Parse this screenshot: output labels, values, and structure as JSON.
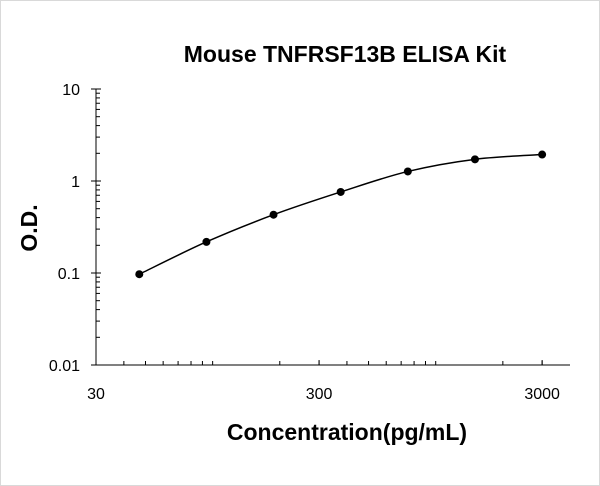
{
  "chart_data": {
    "type": "scatter",
    "title": "Mouse TNFRSF13B ELISA Kit",
    "xlabel": "Concentration(pg/mL)",
    "ylabel": "O.D.",
    "x_scale": "log",
    "y_scale": "log",
    "xlim": [
      30,
      4000
    ],
    "ylim": [
      0.01,
      10
    ],
    "x_ticks": [
      {
        "value": 30,
        "label": "30"
      },
      {
        "value": 300,
        "label": "300"
      },
      {
        "value": 3000,
        "label": "3000"
      }
    ],
    "y_ticks": [
      {
        "value": 10,
        "label": "10"
      },
      {
        "value": 1,
        "label": "1"
      },
      {
        "value": 0.1,
        "label": "0.1"
      },
      {
        "value": 0.01,
        "label": "0.01"
      }
    ],
    "grid": false,
    "legend": "none",
    "series": [
      {
        "x": [
          46.9,
          93.8,
          187.5,
          375,
          750,
          1500,
          3000
        ],
        "y": [
          0.097,
          0.218,
          0.43,
          0.76,
          1.27,
          1.72,
          1.94
        ],
        "color": "#000000",
        "fit_line": "smooth"
      }
    ]
  }
}
